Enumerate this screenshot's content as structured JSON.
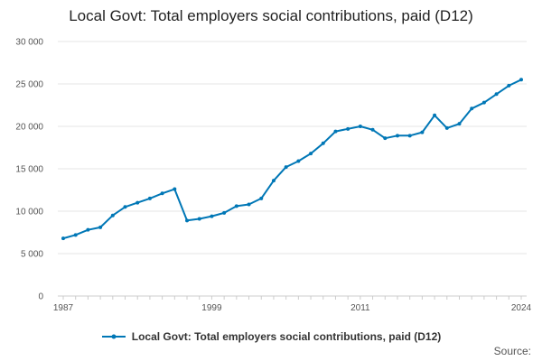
{
  "chart_data": {
    "type": "line",
    "title": "Local Govt: Total employers social contributions, paid (D12)",
    "xlabel": "",
    "ylabel": "",
    "xlim": [
      1987,
      2024
    ],
    "ylim": [
      0,
      30000
    ],
    "yticks": [
      0,
      5000,
      10000,
      15000,
      20000,
      25000,
      30000
    ],
    "ytick_labels": [
      "0",
      "5 000",
      "10 000",
      "15 000",
      "20 000",
      "25 000",
      "30 000"
    ],
    "xticks": [
      1987,
      1999,
      2011,
      2024
    ],
    "xtick_labels": [
      "1987",
      "1999",
      "2011",
      "2024"
    ],
    "grid": true,
    "legend_position": "bottom",
    "color": "#0077b6",
    "series": [
      {
        "name": "Local Govt: Total employers social contributions, paid (D12)",
        "x": [
          1987,
          1988,
          1989,
          1990,
          1991,
          1992,
          1993,
          1994,
          1995,
          1996,
          1997,
          1998,
          1999,
          2000,
          2001,
          2002,
          2003,
          2004,
          2005,
          2006,
          2007,
          2008,
          2009,
          2010,
          2011,
          2012,
          2013,
          2014,
          2015,
          2016,
          2017,
          2018,
          2019,
          2020,
          2021,
          2022,
          2023,
          2024
        ],
        "values": [
          6800,
          7200,
          7800,
          8100,
          9500,
          10500,
          11000,
          11500,
          12100,
          12600,
          8900,
          9100,
          9400,
          9800,
          10600,
          10800,
          11500,
          13600,
          15200,
          15900,
          16800,
          18000,
          19400,
          19700,
          20000,
          19600,
          18600,
          18900,
          18900,
          19300,
          21300,
          19800,
          20300,
          22100,
          22800,
          23800,
          24800,
          25500
        ]
      }
    ],
    "source_label": "Source:"
  }
}
